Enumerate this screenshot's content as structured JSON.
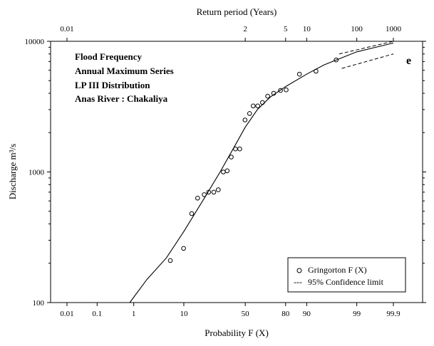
{
  "chart_data": {
    "type": "scatter",
    "top_axis": {
      "title": "Return period  (Years)",
      "ticks": [
        {
          "label": "0.01",
          "prob": 0.01
        },
        {
          "label": "2",
          "prob": 50
        },
        {
          "label": "5",
          "prob": 80
        },
        {
          "label": "10",
          "prob": 90
        },
        {
          "label": "100",
          "prob": 99
        },
        {
          "label": "1000",
          "prob": 99.9
        }
      ]
    },
    "x_axis": {
      "title": "Probability  F (X)",
      "scale": "normal-probability",
      "ticks": [
        "0.01",
        "0.1",
        "1",
        "10",
        "50",
        "80",
        "90",
        "99",
        "99.9"
      ],
      "tick_values": [
        0.01,
        0.1,
        1,
        10,
        50,
        80,
        90,
        99,
        99.9
      ]
    },
    "y_axis": {
      "title": "Discharge m³/s",
      "scale": "log",
      "ylim": [
        100,
        10000
      ],
      "ticks": [
        "100",
        "1000",
        "10000"
      ],
      "tick_values": [
        100,
        1000,
        10000
      ]
    },
    "annotations": [
      "Flood Frequency",
      "Annual Maximum  Series",
      "LP III Distribution",
      "Anas River : Chakaliya"
    ],
    "panel_label": "e",
    "legend": {
      "position": "bottom-right",
      "entries": [
        {
          "marker": "circle",
          "label": "Gringorton  F (X)"
        },
        {
          "marker": "---",
          "label": "95% Confidence limit"
        }
      ]
    },
    "observed": {
      "name": "Gringorton  F (X)",
      "points": [
        [
          5.9,
          210
        ],
        [
          9.9,
          260
        ],
        [
          13.2,
          480
        ],
        [
          16.0,
          630
        ],
        [
          19.6,
          670
        ],
        [
          22.3,
          700
        ],
        [
          25.6,
          700
        ],
        [
          28.7,
          730
        ],
        [
          32.4,
          1000
        ],
        [
          35.3,
          1020
        ],
        [
          38.5,
          1300
        ],
        [
          41.9,
          1500
        ],
        [
          45.4,
          1500
        ],
        [
          49.8,
          2500
        ],
        [
          53.6,
          2800
        ],
        [
          56.6,
          3200
        ],
        [
          60.3,
          3200
        ],
        [
          64.0,
          3400
        ],
        [
          68.0,
          3800
        ],
        [
          72.3,
          4000
        ],
        [
          76.9,
          4200
        ],
        [
          80.3,
          4250
        ],
        [
          87.1,
          5600
        ],
        [
          93.0,
          5900
        ],
        [
          97.1,
          7200
        ]
      ]
    },
    "fitted_curve": {
      "points": [
        [
          0.8,
          100
        ],
        [
          2,
          150
        ],
        [
          5,
          220
        ],
        [
          10,
          350
        ],
        [
          20,
          640
        ],
        [
          30,
          1000
        ],
        [
          40,
          1500
        ],
        [
          50,
          2200
        ],
        [
          60,
          3000
        ],
        [
          70,
          3750
        ],
        [
          80,
          4500
        ],
        [
          90,
          5600
        ],
        [
          95,
          6600
        ],
        [
          99,
          8300
        ],
        [
          99.9,
          9700
        ]
      ]
    },
    "confidence_limits": {
      "upper": [
        [
          97.5,
          8000
        ],
        [
          99.9,
          10000
        ]
      ],
      "lower": [
        [
          97.8,
          6200
        ],
        [
          99.9,
          8000
        ]
      ]
    }
  }
}
